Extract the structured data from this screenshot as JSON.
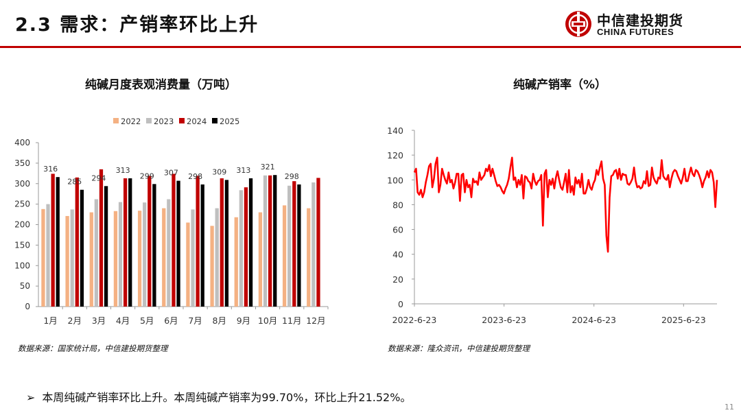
{
  "header": {
    "title": "2.3 需求：产销率环比上升",
    "logo_cn": "中信建投期货",
    "logo_en": "CHINA FUTURES",
    "accent_color": "#c00000"
  },
  "left_chart": {
    "title": "纯碱月度表观消费量（万吨）",
    "source": "数据来源：国家统计局，中信建投期货整理"
  },
  "right_chart": {
    "title": "纯碱产销率（%）",
    "source": "数据来源：隆众资讯，中信建投期货整理"
  },
  "chart_data": [
    {
      "type": "bar",
      "title": "纯碱月度表观消费量（万吨）",
      "categories": [
        "1月",
        "2月",
        "3月",
        "4月",
        "5月",
        "6月",
        "7月",
        "8月",
        "9月",
        "10月",
        "11月",
        "12月"
      ],
      "series": [
        {
          "name": "2022",
          "color": "#f4b183",
          "values": [
            238,
            221,
            230,
            233,
            234,
            240,
            205,
            197,
            218,
            230,
            247,
            240
          ]
        },
        {
          "name": "2023",
          "color": "#bfbfbf",
          "values": [
            250,
            237,
            262,
            255,
            254,
            262,
            237,
            240,
            284,
            320,
            295,
            303
          ]
        },
        {
          "name": "2024",
          "color": "#c00000",
          "values": [
            324,
            315,
            335,
            313,
            319,
            324,
            319,
            313,
            291,
            320,
            306,
            314
          ]
        },
        {
          "name": "2025",
          "color": "#000000",
          "values": [
            316,
            285,
            294,
            313,
            299,
            307,
            298,
            309,
            313,
            321,
            298,
            null
          ]
        }
      ],
      "data_labels": {
        "series": "2025",
        "values": [
          316,
          285,
          294,
          313,
          299,
          307,
          298,
          309,
          313,
          321,
          298
        ]
      },
      "ylim": [
        0,
        400
      ],
      "yticks": [
        0,
        50,
        100,
        150,
        200,
        250,
        300,
        350,
        400
      ],
      "legend": "top-center",
      "grid": false
    },
    {
      "type": "line",
      "title": "纯碱产销率（%）",
      "series": [
        {
          "color": "#ff0000",
          "values": [
            106,
            109,
            90,
            88,
            92,
            86,
            90,
            98,
            104,
            111,
            113,
            94,
            101,
            113,
            118,
            90,
            96,
            109,
            104,
            100,
            97,
            106,
            98,
            100,
            93,
            98,
            105,
            105,
            83,
            104,
            105,
            90,
            100,
            94,
            96,
            86,
            101,
            98,
            99,
            96,
            106,
            100,
            102,
            104,
            109,
            107,
            112,
            103,
            109,
            104,
            99,
            95,
            96,
            94,
            91,
            89,
            93,
            96,
            101,
            110,
            118,
            100,
            102,
            94,
            100,
            96,
            104,
            85,
            103,
            102,
            99,
            98,
            93,
            105,
            99,
            96,
            99,
            100,
            104,
            63,
            105,
            108,
            86,
            100,
            96,
            101,
            93,
            102,
            107,
            100,
            94,
            92,
            98,
            105,
            90,
            108,
            90,
            95,
            88,
            102,
            97,
            100,
            94,
            105,
            89,
            89,
            93,
            100,
            94,
            92,
            97,
            100,
            108,
            104,
            110,
            115,
            101,
            96,
            55,
            42,
            86,
            103,
            104,
            107,
            108,
            101,
            109,
            100,
            105,
            104,
            104,
            97,
            96,
            98,
            101,
            110,
            99,
            94,
            95,
            93,
            94,
            99,
            97,
            107,
            95,
            96,
            110,
            102,
            99,
            97,
            102,
            101,
            116,
            103,
            101,
            100,
            104,
            94,
            101,
            106,
            108,
            107,
            103,
            100,
            97,
            102,
            109,
            99,
            99,
            105,
            110,
            105,
            103,
            108,
            107,
            104,
            100,
            94,
            99,
            102,
            107,
            102,
            108,
            106,
            98,
            78,
            100
          ]
        }
      ],
      "x_start": "2022-06-23",
      "x_end": "2025-11-06",
      "xticks": [
        "2022-6-23",
        "2023-6-23",
        "2024-6-23",
        "2025-6-23"
      ],
      "ylim": [
        0,
        140
      ],
      "yticks": [
        0,
        20,
        40,
        60,
        80,
        100,
        120,
        140
      ],
      "grid": false
    }
  ],
  "bullet": {
    "arrow": "➢",
    "text": "本周纯碱产销率环比上升。本周纯碱产销率为99.70%，环比上升21.52%。"
  },
  "page_number": "11"
}
